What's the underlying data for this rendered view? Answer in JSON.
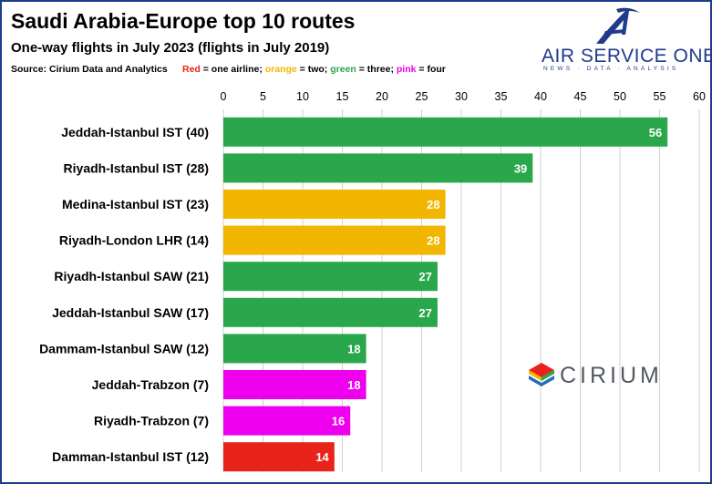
{
  "header": {
    "title": "Saudi Arabia-Europe top 10 routes",
    "subtitle": "One-way flights in July 2023 (flights in July 2019)",
    "source": "Source: Cirium Data and Analytics",
    "legend": {
      "red": "Red",
      "red_text": " = one airline; ",
      "orange": "orange",
      "orange_text": " = two; ",
      "green": "green",
      "green_text": " = three; ",
      "pink": "pink",
      "pink_text": " = four"
    }
  },
  "logos": {
    "aso_name": "AIR SERVICE ONE",
    "aso_tagline": "NEWS · DATA · ANALYSIS",
    "cirium_name": "CIRIUM"
  },
  "colors": {
    "red": "#e8231a",
    "orange": "#f2b600",
    "green": "#2aa64b",
    "pink": "#ee00ee",
    "brand": "#1f3b8c"
  },
  "chart_data": {
    "type": "bar",
    "orientation": "horizontal",
    "title": "Saudi Arabia-Europe top 10 routes",
    "xlabel": "",
    "ylabel": "",
    "xlim": [
      0,
      60
    ],
    "ticks": [
      0,
      5,
      10,
      15,
      20,
      25,
      30,
      35,
      40,
      45,
      50,
      55,
      60
    ],
    "grid": true,
    "axis_position": "top",
    "categories": [
      "Jeddah-Istanbul IST (40)",
      "Riyadh-Istanbul IST (28)",
      "Medina-Istanbul IST (23)",
      "Riyadh-London LHR (14)",
      "Riyadh-Istanbul SAW (21)",
      "Jeddah-Istanbul SAW (17)",
      "Dammam-Istanbul SAW (12)",
      "Jeddah-Trabzon (7)",
      "Riyadh-Trabzon (7)",
      "Damman-Istanbul IST (12)"
    ],
    "values": [
      56,
      39,
      28,
      28,
      27,
      27,
      18,
      18,
      16,
      14
    ],
    "airline_count_color": [
      "green",
      "green",
      "orange",
      "orange",
      "green",
      "green",
      "green",
      "pink",
      "pink",
      "red"
    ]
  }
}
